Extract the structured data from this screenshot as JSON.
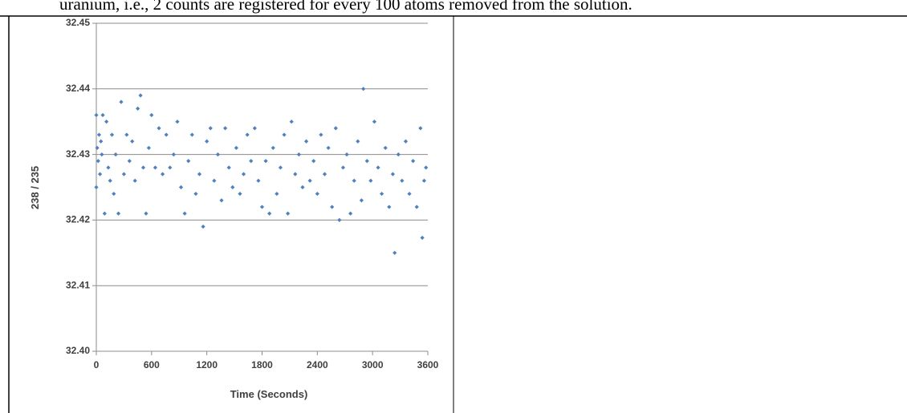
{
  "document": {
    "text": "uranium, i.e., 2 counts are registered for every 100 atoms removed from the solution."
  },
  "chart_data": {
    "type": "scatter",
    "x_label": "Time (Seconds)",
    "y_label": "238 / 235",
    "color": "#4f81bd",
    "grid": true,
    "xlim": [
      0,
      3600
    ],
    "xticks": [
      0,
      600,
      1200,
      1800,
      2400,
      3000,
      3600
    ],
    "ylim": [
      32.4,
      32.45
    ],
    "yticks": [
      {
        "value": 32.4,
        "label": "32.40"
      },
      32.41,
      32.42,
      32.43,
      32.44,
      32.45
    ],
    "x": [
      0,
      0,
      10,
      20,
      30,
      40,
      50,
      60,
      70,
      90,
      110,
      130,
      150,
      170,
      190,
      210,
      240,
      270,
      300,
      330,
      360,
      390,
      420,
      450,
      480,
      510,
      540,
      570,
      600,
      640,
      680,
      720,
      760,
      800,
      840,
      880,
      920,
      960,
      1000,
      1040,
      1080,
      1120,
      1160,
      1200,
      1240,
      1280,
      1320,
      1360,
      1400,
      1440,
      1480,
      1520,
      1560,
      1600,
      1640,
      1680,
      1720,
      1760,
      1800,
      1840,
      1880,
      1920,
      1960,
      2000,
      2040,
      2080,
      2120,
      2160,
      2200,
      2240,
      2280,
      2320,
      2360,
      2400,
      2440,
      2480,
      2520,
      2560,
      2600,
      2640,
      2680,
      2720,
      2760,
      2800,
      2840,
      2880,
      2900,
      2940,
      2980,
      3020,
      3060,
      3100,
      3140,
      3180,
      3220,
      3240,
      3280,
      3320,
      3360,
      3400,
      3440,
      3480,
      3520,
      3540,
      3560,
      3580
    ],
    "values": [
      32.436,
      32.425,
      32.431,
      32.429,
      32.433,
      32.427,
      32.432,
      32.43,
      32.436,
      32.421,
      32.435,
      32.428,
      32.426,
      32.433,
      32.424,
      32.43,
      32.421,
      32.438,
      32.427,
      32.433,
      32.429,
      32.432,
      32.426,
      32.437,
      32.439,
      32.428,
      32.421,
      32.431,
      32.436,
      32.428,
      32.434,
      32.427,
      32.433,
      32.428,
      32.43,
      32.435,
      32.425,
      32.421,
      32.429,
      32.433,
      32.424,
      32.427,
      32.419,
      32.432,
      32.434,
      32.426,
      32.43,
      32.423,
      32.434,
      32.428,
      32.425,
      32.431,
      32.424,
      32.427,
      32.433,
      32.429,
      32.434,
      32.426,
      32.422,
      32.429,
      32.421,
      32.431,
      32.424,
      32.428,
      32.433,
      32.421,
      32.435,
      32.427,
      32.43,
      32.425,
      32.432,
      32.426,
      32.429,
      32.424,
      32.433,
      32.427,
      32.431,
      32.422,
      32.434,
      32.42,
      32.428,
      32.43,
      32.421,
      32.426,
      32.432,
      32.423,
      32.44,
      32.429,
      32.426,
      32.435,
      32.428,
      32.424,
      32.431,
      32.422,
      32.427,
      32.415,
      32.43,
      32.426,
      32.432,
      32.424,
      32.429,
      32.422,
      32.434,
      32.4173,
      32.426,
      32.428
    ]
  }
}
